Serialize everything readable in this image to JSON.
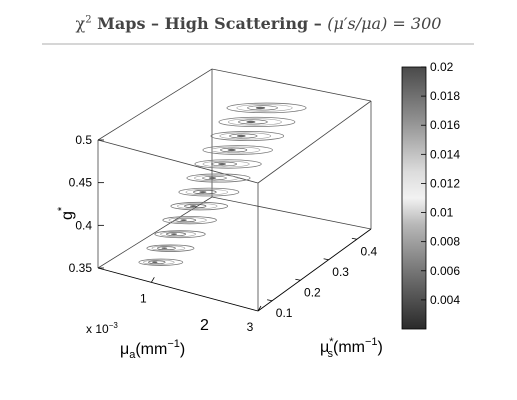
{
  "title": {
    "prefix": "χ",
    "sup": "2",
    "bold": " Maps – High Scattering – ",
    "math_expr": "(μ′s/μa) = 300"
  },
  "chart_data": {
    "type": "contour3d",
    "xlabel": "μa(mm−1)",
    "xlabel_parts": {
      "mu": "μ",
      "sub": "a",
      "rest": "(mm",
      "sup": "−1",
      "close": ")"
    },
    "x_multiplier": "x 10−3",
    "x_multiplier_parts": {
      "base": "x 10",
      "sup": "−3"
    },
    "x_extra_label": "2",
    "x_ticks": [
      "1",
      "3"
    ],
    "xlim": [
      0,
      3
    ],
    "ylabel": "μs*(mm−1)",
    "ylabel_parts": {
      "mu": "μ",
      "sup": "*",
      "sub": "s",
      "rest": "(mm",
      "sup2": "−1",
      "close": ")"
    },
    "y_ticks": [
      "0.1",
      "0.2",
      "0.3",
      "0.4"
    ],
    "ylim": [
      0.05,
      0.45
    ],
    "zlabel": "g*",
    "zlabel_parts": {
      "g": "g",
      "sup": "*"
    },
    "z_ticks": [
      "0.35",
      "0.4",
      "0.45",
      "0.5"
    ],
    "zlim": [
      0.35,
      0.5
    ],
    "colorbar": {
      "ticks": [
        "0.004",
        "0.006",
        "0.008",
        "0.01",
        "0.012",
        "0.014",
        "0.016",
        "0.018",
        "0.02"
      ],
      "range": [
        0.002,
        0.02
      ],
      "colormap": "gray-light-center"
    },
    "slices": [
      {
        "g": 0.36,
        "mua": 0.00075,
        "mus": 0.095
      },
      {
        "g": 0.375,
        "mua": 0.00085,
        "mus": 0.11
      },
      {
        "g": 0.39,
        "mua": 0.00095,
        "mus": 0.125
      },
      {
        "g": 0.405,
        "mua": 0.00105,
        "mus": 0.14
      },
      {
        "g": 0.42,
        "mua": 0.00115,
        "mus": 0.155
      },
      {
        "g": 0.435,
        "mua": 0.00125,
        "mus": 0.17
      },
      {
        "g": 0.45,
        "mua": 0.00135,
        "mus": 0.185
      },
      {
        "g": 0.465,
        "mua": 0.00145,
        "mus": 0.2
      },
      {
        "g": 0.48,
        "mua": 0.00155,
        "mus": 0.215
      },
      {
        "g": 0.495,
        "mua": 0.00165,
        "mus": 0.23
      },
      {
        "g": 0.51,
        "mua": 0.00175,
        "mus": 0.245
      },
      {
        "g": 0.525,
        "mua": 0.00185,
        "mus": 0.26
      }
    ]
  }
}
